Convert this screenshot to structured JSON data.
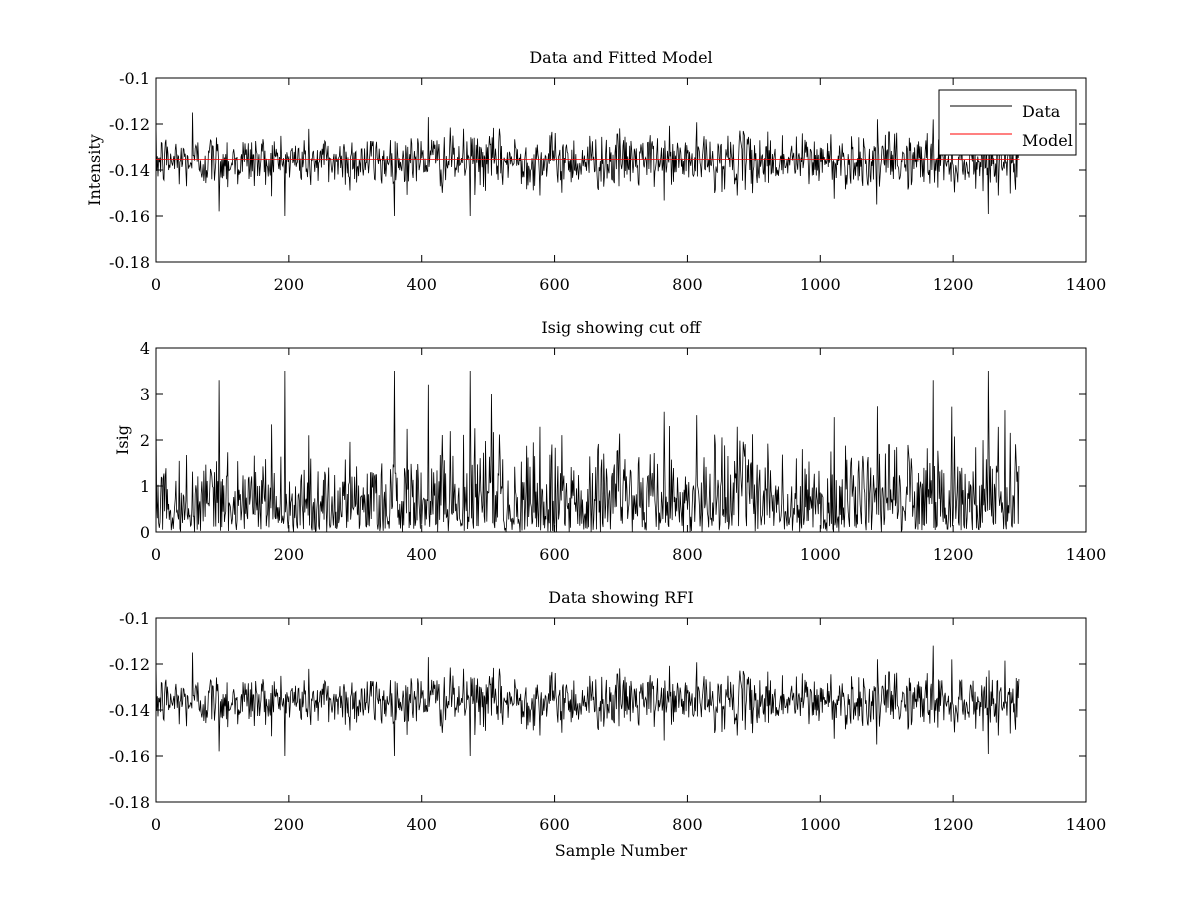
{
  "chart_data": [
    {
      "type": "line",
      "title": "Data and Fitted Model",
      "xlabel": "",
      "ylabel": "Intensity",
      "xlim": [
        0,
        1400
      ],
      "ylim": [
        -0.18,
        -0.1
      ],
      "xticks": [
        0,
        200,
        400,
        600,
        800,
        1000,
        1200,
        1400
      ],
      "yticks": [
        -0.18,
        -0.16,
        -0.14,
        -0.12,
        -0.1
      ],
      "xtick_labels": [
        "0",
        "200",
        "400",
        "600",
        "800",
        "1000",
        "1200",
        "1400"
      ],
      "ytick_labels": [
        "-0.18",
        "-0.16",
        "-0.14",
        "-0.12",
        "-0.1"
      ],
      "grid": false,
      "legend": {
        "position": "top-right",
        "entries": [
          "Data",
          "Model"
        ]
      },
      "series": [
        {
          "name": "Data",
          "color": "#000000",
          "kind": "noise",
          "n_samples": 1300,
          "center": -0.136,
          "spread": 0.006,
          "min": -0.16,
          "max": -0.115,
          "spikes": [
            [
              55,
              -0.115
            ],
            [
              95,
              -0.158
            ],
            [
              410,
              -0.117
            ],
            [
              473,
              -0.16
            ],
            [
              1085,
              -0.155
            ],
            [
              1170,
              -0.118
            ]
          ]
        },
        {
          "name": "Model",
          "color": "#ff0000",
          "kind": "constant",
          "value": -0.1355,
          "x_range": [
            0,
            1300
          ]
        }
      ]
    },
    {
      "type": "line",
      "title": "Isig showing cut off",
      "xlabel": "",
      "ylabel": "Isig",
      "xlim": [
        0,
        1400
      ],
      "ylim": [
        0,
        4
      ],
      "xticks": [
        0,
        200,
        400,
        600,
        800,
        1000,
        1200,
        1400
      ],
      "yticks": [
        0,
        1,
        2,
        3,
        4
      ],
      "xtick_labels": [
        "0",
        "200",
        "400",
        "600",
        "800",
        "1000",
        "1200",
        "1400"
      ],
      "ytick_labels": [
        "0",
        "1",
        "2",
        "3",
        "4"
      ],
      "grid": false,
      "series": [
        {
          "color": "#000000",
          "kind": "abs-noise",
          "n_samples": 1300,
          "min": 0,
          "max": 3.5,
          "typical_peak": 2.0,
          "spikes": [
            [
              95,
              3.3
            ],
            [
              410,
              3.2
            ],
            [
              473,
              3.5
            ],
            [
              505,
              3.0
            ],
            [
              1170,
              3.3
            ]
          ]
        }
      ]
    },
    {
      "type": "line",
      "title": "Data showing RFI",
      "xlabel": "Sample Number",
      "ylabel": "",
      "xlim": [
        0,
        1400
      ],
      "ylim": [
        -0.18,
        -0.1
      ],
      "xticks": [
        0,
        200,
        400,
        600,
        800,
        1000,
        1200,
        1400
      ],
      "yticks": [
        -0.18,
        -0.16,
        -0.14,
        -0.12,
        -0.1
      ],
      "xtick_labels": [
        "0",
        "200",
        "400",
        "600",
        "800",
        "1000",
        "1200",
        "1400"
      ],
      "ytick_labels": [
        "-0.18",
        "-0.16",
        "-0.14",
        "-0.12",
        "-0.1"
      ],
      "grid": false,
      "series": [
        {
          "color": "#000000",
          "kind": "noise",
          "n_samples": 1300,
          "center": -0.136,
          "spread": 0.006,
          "min": -0.16,
          "max": -0.112,
          "spikes": [
            [
              55,
              -0.115
            ],
            [
              95,
              -0.158
            ],
            [
              410,
              -0.117
            ],
            [
              473,
              -0.16
            ],
            [
              1085,
              -0.155
            ],
            [
              1170,
              -0.112
            ]
          ]
        }
      ]
    }
  ]
}
